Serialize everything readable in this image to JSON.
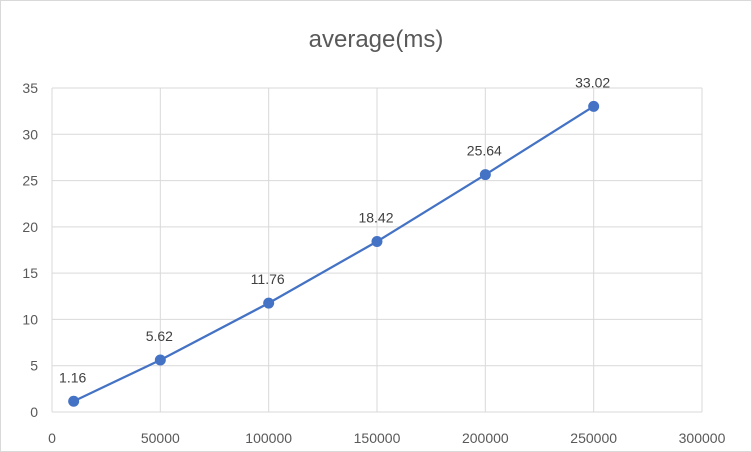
{
  "chart_data": {
    "type": "scatter",
    "title": "average(ms)",
    "xlabel": "",
    "ylabel": "",
    "xlim": [
      0,
      300000
    ],
    "ylim": [
      0,
      35
    ],
    "x_ticks": [
      0,
      50000,
      100000,
      150000,
      200000,
      250000,
      300000
    ],
    "y_ticks": [
      0,
      5,
      10,
      15,
      20,
      25,
      30,
      35
    ],
    "grid": true,
    "legend": "none",
    "series_color": "#4472c4",
    "series": [
      {
        "x": [
          10000,
          50000,
          100000,
          150000,
          200000,
          250000
        ],
        "y": [
          1.16,
          5.62,
          11.76,
          18.42,
          25.64,
          33.02
        ],
        "labels": [
          "1.16",
          "5.62",
          "11.76",
          "18.42",
          "25.64",
          "33.02"
        ]
      }
    ]
  }
}
